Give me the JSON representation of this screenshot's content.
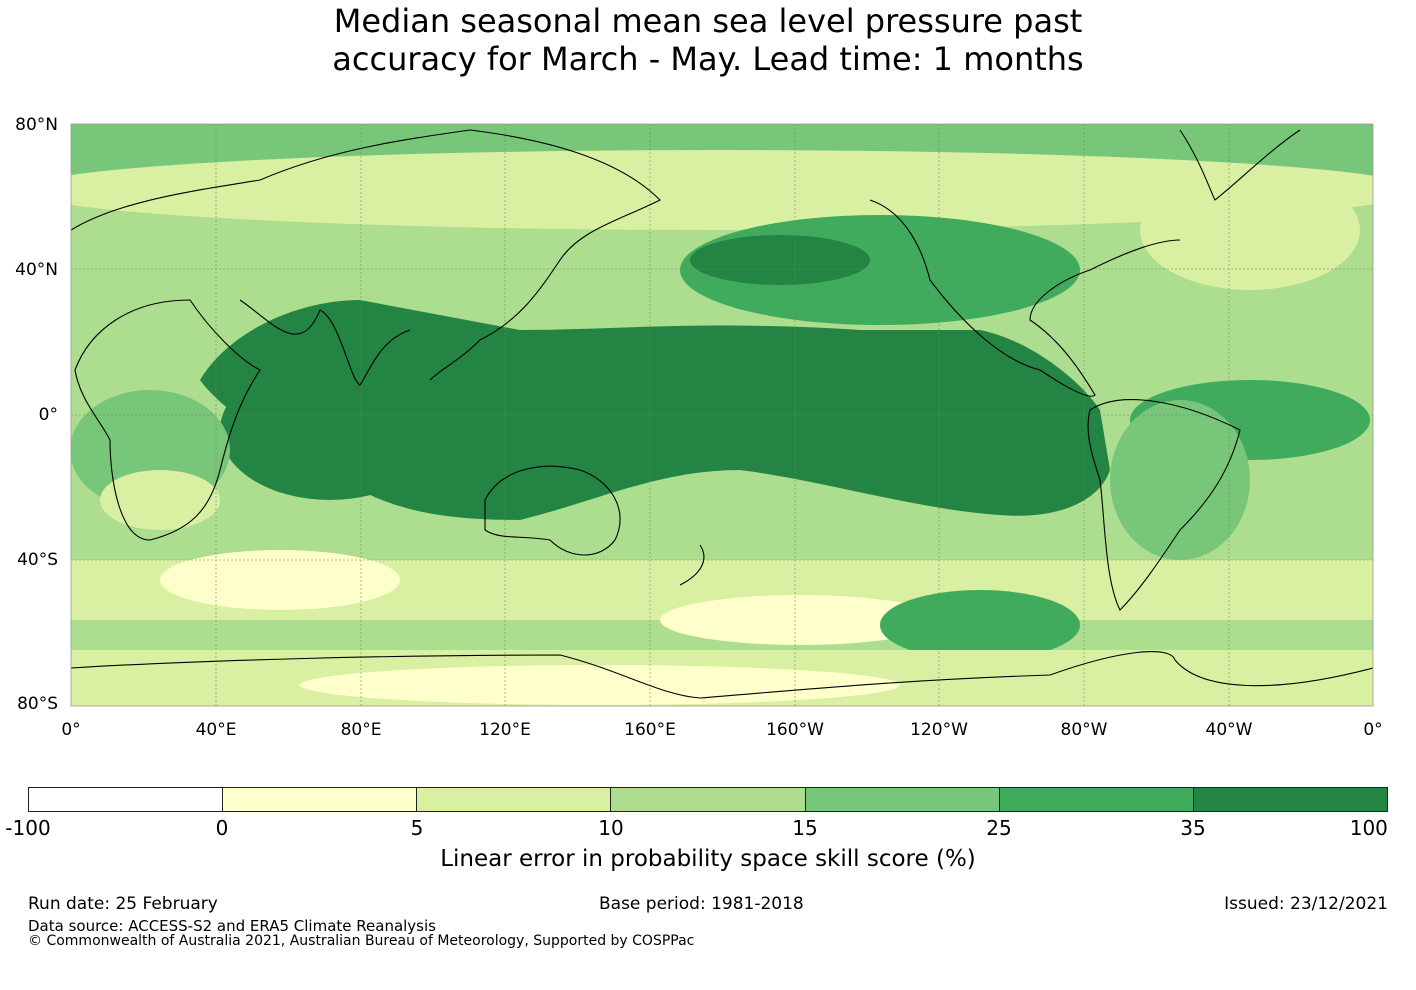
{
  "title": {
    "line1": "Median seasonal mean sea level pressure past",
    "line2": "accuracy for March - May. Lead time: 1 months"
  },
  "map": {
    "lat_labels": [
      "80°N",
      "40°N",
      "0°",
      "40°S",
      "80°S"
    ],
    "lon_labels": [
      "0°",
      "40°E",
      "80°E",
      "120°E",
      "160°E",
      "160°W",
      "120°W",
      "80°W",
      "40°W",
      "0°"
    ],
    "lat_range": [
      -80,
      80
    ],
    "lon_range": [
      0,
      360
    ],
    "gridlines": true
  },
  "colorbar": {
    "ticks": [
      "-100",
      "0",
      "5",
      "10",
      "15",
      "25",
      "35",
      "100"
    ],
    "colors": [
      "#ffffff",
      "#ffffcc",
      "#d9f0a3",
      "#addd8e",
      "#78c679",
      "#41ab5d",
      "#238443"
    ],
    "label": "Linear error in probability space skill score (%)"
  },
  "footer": {
    "run_date": "Run date: 25 February",
    "base_period": "Base period: 1981-2018",
    "issued": "Issued: 23/12/2021",
    "data_source": "Data source: ACCESS-S2 and ERA5 Climate Reanalysis",
    "copyright": "© Commonwealth of Australia 2021, Australian Bureau of Meteorology, Supported by COSPPac"
  }
}
